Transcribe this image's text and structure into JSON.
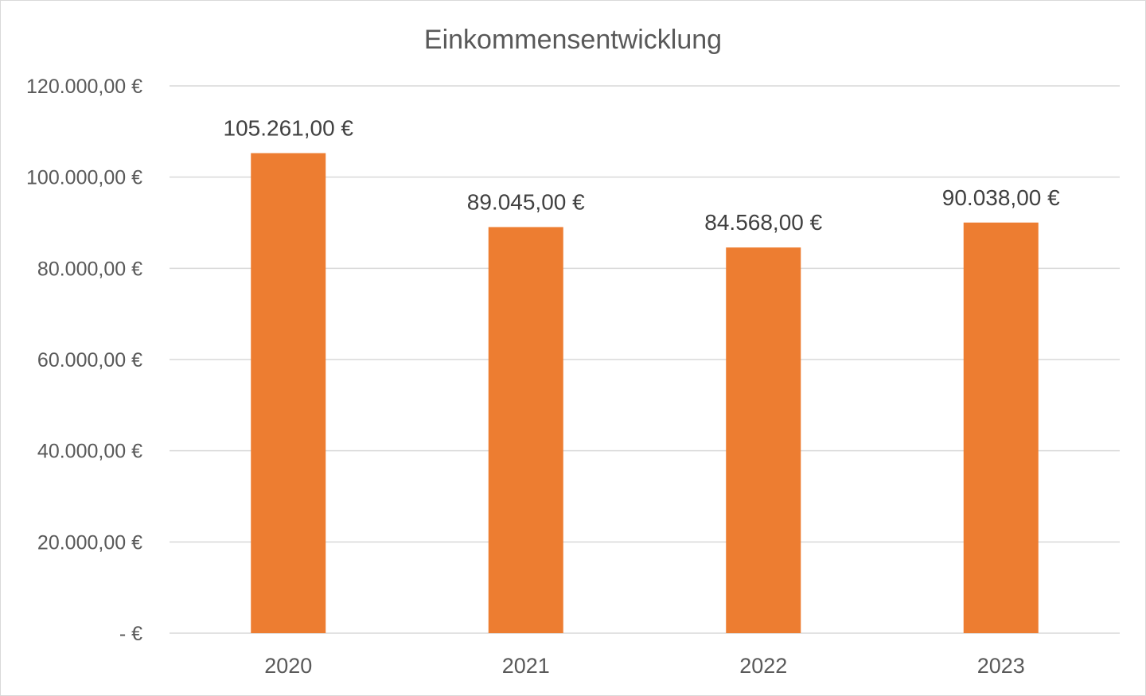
{
  "chart_data": {
    "type": "bar",
    "title": "Einkommensentwicklung",
    "xlabel": "",
    "ylabel": "",
    "categories": [
      "2020",
      "2021",
      "2022",
      "2023"
    ],
    "values": [
      105261,
      89045,
      84568,
      90038
    ],
    "data_labels": [
      "105.261,00 €",
      "89.045,00 €",
      "84.568,00 €",
      "90.038,00 €"
    ],
    "ylim": [
      0,
      120000
    ],
    "yticks": [
      0,
      20000,
      40000,
      60000,
      80000,
      100000,
      120000
    ],
    "ytick_labels": [
      "-   €",
      "20.000,00 €",
      "40.000,00 €",
      "60.000,00 €",
      "80.000,00 €",
      "100.000,00 €",
      "120.000,00 €"
    ],
    "grid": true,
    "legend": "none",
    "bar_color": "#ED7D31"
  }
}
